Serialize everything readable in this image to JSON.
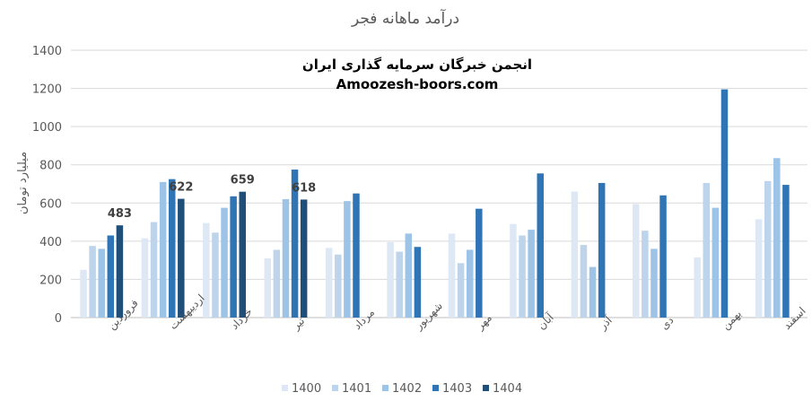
{
  "chart_data": {
    "type": "bar",
    "title": "درآمد ماهانه فجر",
    "ylabel": "میلیارد تومان",
    "xlabel": "",
    "ylim": [
      0,
      1400
    ],
    "yticks": [
      0,
      200,
      400,
      600,
      800,
      1000,
      1200,
      1400
    ],
    "grid": true,
    "legend_position": "bottom",
    "watermark": [
      "انجمن خبرگان سرمایه گذاری ایران",
      "Amoozesh-boors.com"
    ],
    "categories": [
      "فروردین",
      "اردیبهشت",
      "خرداد",
      "تیر",
      "مرداد",
      "شهریور",
      "مهر",
      "آبان",
      "آذر",
      "دی",
      "بهمن",
      "اسفند"
    ],
    "series": [
      {
        "name": "1400",
        "color": "#dde8f4",
        "values": [
          250,
          415,
          495,
          310,
          365,
          395,
          440,
          490,
          660,
          595,
          315,
          515
        ]
      },
      {
        "name": "1401",
        "color": "#bdd4ea",
        "values": [
          375,
          500,
          445,
          355,
          330,
          345,
          285,
          430,
          380,
          455,
          705,
          715
        ]
      },
      {
        "name": "1402",
        "color": "#9dc3e6",
        "values": [
          360,
          710,
          575,
          620,
          610,
          440,
          355,
          460,
          265,
          360,
          575,
          835
        ]
      },
      {
        "name": "1403",
        "color": "#2f75b5",
        "values": [
          430,
          725,
          635,
          775,
          650,
          370,
          570,
          755,
          705,
          640,
          1195,
          695
        ]
      },
      {
        "name": "1404",
        "color": "#1f4e79",
        "values": [
          483,
          622,
          659,
          618,
          null,
          null,
          null,
          null,
          null,
          null,
          null,
          null
        ]
      }
    ],
    "data_labels": [
      {
        "category_index": 0,
        "series_index": 4,
        "text": "483"
      },
      {
        "category_index": 1,
        "series_index": 4,
        "text": "622"
      },
      {
        "category_index": 2,
        "series_index": 4,
        "text": "659"
      },
      {
        "category_index": 3,
        "series_index": 4,
        "text": "618"
      }
    ]
  }
}
